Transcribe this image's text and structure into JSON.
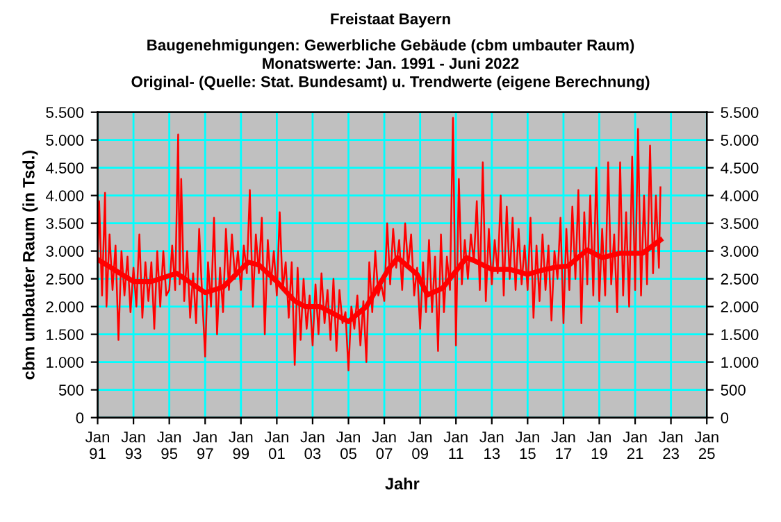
{
  "chart_data": {
    "type": "line",
    "title": "Freistaat Bayern",
    "subtitle": "Baugenehmigungen: Gewerbliche Gebäude (cbm umbauter Raum)\nMonatswerte: Jan. 1991 - Juni 2022\nOriginal- (Quelle: Stat. Bundesamt) u. Trendwerte (eigene Berechnung)",
    "xlabel": "Jahr",
    "ylabel": "cbm umbauter Raum (in Tsd.)",
    "grid": true,
    "marker": "none",
    "line_style": "solid",
    "xlim": [
      "1991-01",
      "2025-01"
    ],
    "xticks": [
      {
        "value": "1991-01",
        "label": "Jan\n91"
      },
      {
        "value": "1993-01",
        "label": "Jan\n93"
      },
      {
        "value": "1995-01",
        "label": "Jan\n95"
      },
      {
        "value": "1997-01",
        "label": "Jan\n97"
      },
      {
        "value": "1999-01",
        "label": "Jan\n99"
      },
      {
        "value": "2001-01",
        "label": "Jan\n01"
      },
      {
        "value": "2003-01",
        "label": "Jan\n03"
      },
      {
        "value": "2005-01",
        "label": "Jan\n05"
      },
      {
        "value": "2007-01",
        "label": "Jan\n07"
      },
      {
        "value": "2009-01",
        "label": "Jan\n09"
      },
      {
        "value": "2011-01",
        "label": "Jan\n11"
      },
      {
        "value": "2013-01",
        "label": "Jan\n13"
      },
      {
        "value": "2015-01",
        "label": "Jan\n15"
      },
      {
        "value": "2017-01",
        "label": "Jan\n17"
      },
      {
        "value": "2019-01",
        "label": "Jan\n19"
      },
      {
        "value": "2021-01",
        "label": "Jan\n21"
      },
      {
        "value": "2023-01",
        "label": "Jan\n23"
      },
      {
        "value": "2025-01",
        "label": "Jan\n25"
      }
    ],
    "ylim": [
      0,
      5500
    ],
    "yticks": [
      0,
      500,
      {
        "value": 1000,
        "label": "1.000"
      },
      {
        "value": 1500,
        "label": "1.500"
      },
      {
        "value": 2000,
        "label": "2.000"
      },
      {
        "value": 2500,
        "label": "2.500"
      },
      {
        "value": 3000,
        "label": "3.000"
      },
      {
        "value": 3500,
        "label": "3.500"
      },
      {
        "value": 4000,
        "label": "4.000"
      },
      {
        "value": 4500,
        "label": "4.500"
      },
      {
        "value": 5000,
        "label": "5.000"
      },
      {
        "value": 5500,
        "label": "5.500"
      }
    ],
    "y2lim": [
      0,
      5500
    ],
    "y2ticks": [
      0,
      500,
      {
        "value": 1000,
        "label": "1.000"
      },
      {
        "value": 1500,
        "label": "1.500"
      },
      {
        "value": 2000,
        "label": "2.000"
      },
      {
        "value": 2500,
        "label": "2.500"
      },
      {
        "value": 3000,
        "label": "3.000"
      },
      {
        "value": 3500,
        "label": "3.500"
      },
      {
        "value": 4000,
        "label": "4.000"
      },
      {
        "value": 4500,
        "label": "4.500"
      },
      {
        "value": 5000,
        "label": "5.000"
      },
      {
        "value": 5500,
        "label": "5.500"
      }
    ],
    "series": [
      {
        "color": "#ff0000",
        "x": [
          "1991-01",
          "1991-02",
          "1991-04",
          "1991-06",
          "1991-07",
          "1991-09",
          "1991-11",
          "1992-01",
          "1992-03",
          "1992-05",
          "1992-07",
          "1992-09",
          "1992-11",
          "1993-01",
          "1993-03",
          "1993-05",
          "1993-07",
          "1993-09",
          "1993-11",
          "1994-01",
          "1994-03",
          "1994-05",
          "1994-07",
          "1994-09",
          "1994-11",
          "1995-01",
          "1995-03",
          "1995-05",
          "1995-07",
          "1995-08",
          "1995-09",
          "1995-11",
          "1996-01",
          "1996-03",
          "1996-05",
          "1996-07",
          "1996-09",
          "1996-11",
          "1997-01",
          "1997-03",
          "1997-05",
          "1997-07",
          "1997-09",
          "1997-11",
          "1998-01",
          "1998-03",
          "1998-05",
          "1998-07",
          "1998-09",
          "1998-11",
          "1999-01",
          "1999-03",
          "1999-05",
          "1999-07",
          "1999-09",
          "1999-11",
          "2000-01",
          "2000-03",
          "2000-05",
          "2000-07",
          "2000-09",
          "2000-11",
          "2001-01",
          "2001-03",
          "2001-05",
          "2001-07",
          "2001-09",
          "2001-11",
          "2002-01",
          "2002-03",
          "2002-05",
          "2002-07",
          "2002-09",
          "2002-11",
          "2003-01",
          "2003-03",
          "2003-05",
          "2003-07",
          "2003-09",
          "2003-11",
          "2004-01",
          "2004-03",
          "2004-05",
          "2004-07",
          "2004-09",
          "2004-11",
          "2005-01",
          "2005-03",
          "2005-05",
          "2005-07",
          "2005-09",
          "2005-11",
          "2006-01",
          "2006-03",
          "2006-05",
          "2006-07",
          "2006-09",
          "2006-11",
          "2007-01",
          "2007-03",
          "2007-05",
          "2007-07",
          "2007-09",
          "2007-11",
          "2008-01",
          "2008-03",
          "2008-05",
          "2008-07",
          "2008-09",
          "2008-11",
          "2009-01",
          "2009-03",
          "2009-05",
          "2009-07",
          "2009-09",
          "2009-11",
          "2010-01",
          "2010-03",
          "2010-05",
          "2010-07",
          "2010-09",
          "2010-11",
          "2011-01",
          "2011-03",
          "2011-05",
          "2011-07",
          "2011-09",
          "2011-11",
          "2012-01",
          "2012-03",
          "2012-05",
          "2012-07",
          "2012-09",
          "2012-11",
          "2013-01",
          "2013-03",
          "2013-05",
          "2013-07",
          "2013-09",
          "2013-11",
          "2014-01",
          "2014-03",
          "2014-05",
          "2014-07",
          "2014-09",
          "2014-11",
          "2015-01",
          "2015-03",
          "2015-05",
          "2015-07",
          "2015-09",
          "2015-11",
          "2016-01",
          "2016-03",
          "2016-05",
          "2016-07",
          "2016-09",
          "2016-11",
          "2017-01",
          "2017-03",
          "2017-05",
          "2017-07",
          "2017-09",
          "2017-11",
          "2018-01",
          "2018-03",
          "2018-05",
          "2018-07",
          "2018-09",
          "2018-11",
          "2019-01",
          "2019-03",
          "2019-05",
          "2019-07",
          "2019-09",
          "2019-11",
          "2020-01",
          "2020-03",
          "2020-05",
          "2020-07",
          "2020-09",
          "2020-11",
          "2021-01",
          "2021-03",
          "2021-05",
          "2021-07",
          "2021-09",
          "2021-11",
          "2022-01",
          "2022-03",
          "2022-05",
          "2022-06"
        ],
        "values": [
          2800,
          3900,
          2200,
          4050,
          2000,
          3300,
          2300,
          3100,
          1400,
          3000,
          2200,
          2900,
          1900,
          2700,
          2000,
          3300,
          1800,
          2800,
          2100,
          2800,
          1600,
          3000,
          2000,
          3000,
          2200,
          2300,
          3100,
          2300,
          5100,
          2400,
          4300,
          2100,
          3000,
          1800,
          2600,
          1700,
          3400,
          2200,
          1100,
          2800,
          2000,
          3600,
          1500,
          2700,
          1900,
          3400,
          2300,
          3300,
          2500,
          3000,
          2300,
          3100,
          2600,
          4100,
          2000,
          3300,
          2600,
          3600,
          1500,
          3200,
          2400,
          3000,
          2200,
          3700,
          2300,
          2800,
          1800,
          2800,
          950,
          2700,
          1400,
          2500,
          1600,
          2200,
          1300,
          2400,
          1500,
          2600,
          1700,
          2300,
          1400,
          2500,
          1200,
          2300,
          1700,
          1900,
          850,
          2000,
          1600,
          2200,
          1300,
          2100,
          1000,
          2800,
          1900,
          3000,
          2200,
          2400,
          2100,
          3500,
          2400,
          3400,
          2700,
          3200,
          2300,
          3500,
          2700,
          3300,
          2200,
          2700,
          1600,
          2800,
          1900,
          3200,
          1900,
          2900,
          1200,
          3300,
          1900,
          2900,
          2300,
          5400,
          1300,
          4300,
          2400,
          3200,
          2500,
          3300,
          2800,
          3900,
          2300,
          4600,
          2100,
          3400,
          2400,
          3200,
          2600,
          4000,
          2200,
          3800,
          2500,
          3600,
          2300,
          3400,
          2400,
          3100,
          2300,
          3600,
          1800,
          3100,
          2100,
          3300,
          2300,
          3100,
          1750,
          3000,
          2500,
          3600,
          1700,
          3400,
          2300,
          3800,
          2500,
          4100,
          1700,
          3700,
          2400,
          4000,
          2200,
          4500,
          2100,
          3400,
          2200,
          4600,
          2400,
          3300,
          1900,
          4600,
          2200,
          3700,
          2000,
          4700,
          2300,
          5200,
          2200,
          4000,
          2400,
          4900,
          2600,
          4000,
          2700,
          4150
        ]
      },
      {
        "color": "#ff0000",
        "x": [
          "1991-01",
          "1992-01",
          "1993-01",
          "1994-01",
          "1995-06",
          "1997-01",
          "1998-01",
          "1999-06",
          "2000-01",
          "2001-01",
          "2002-01",
          "2002-08",
          "2003-06",
          "2005-01",
          "2006-01",
          "2007-04",
          "2007-10",
          "2008-11",
          "2009-06",
          "2010-04",
          "2011-08",
          "2012-01",
          "2013-01",
          "2014-01",
          "2015-01",
          "2015-10",
          "2016-08",
          "2017-04",
          "2018-05",
          "2019-03",
          "2020-03",
          "2021-06",
          "2022-06"
        ],
        "values": [
          2850,
          2650,
          2450,
          2450,
          2600,
          2250,
          2350,
          2800,
          2750,
          2450,
          2100,
          2000,
          2000,
          1730,
          2000,
          2680,
          2880,
          2580,
          2210,
          2330,
          2880,
          2830,
          2670,
          2670,
          2580,
          2650,
          2710,
          2730,
          3020,
          2880,
          2960,
          2960,
          3200
        ]
      }
    ]
  }
}
